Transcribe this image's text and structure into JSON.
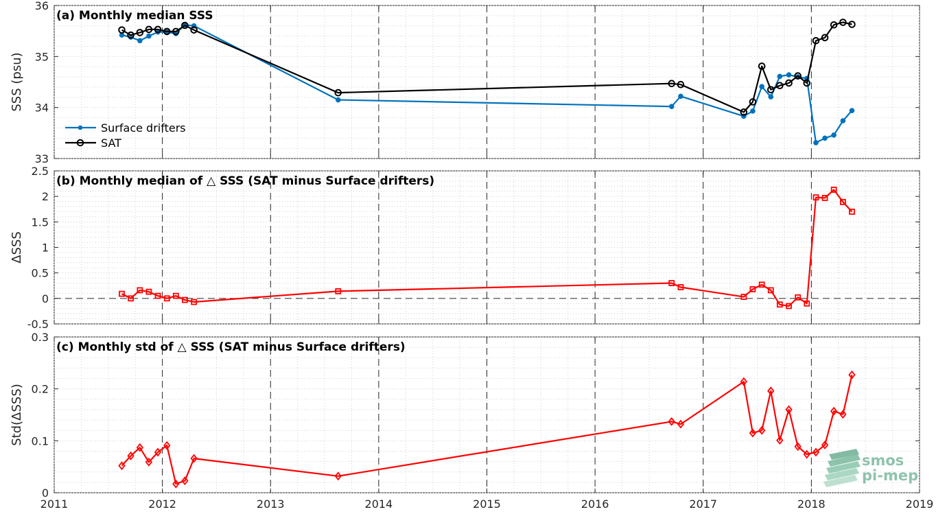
{
  "chart_data": [
    {
      "type": "line",
      "title": "(a) Monthly median SSS",
      "ylabel": "SSS (psu)",
      "xlim": [
        2011,
        2019
      ],
      "ylim": [
        33,
        36
      ],
      "yticks": [
        33,
        34,
        35,
        36
      ],
      "xticks": [
        2011,
        2012,
        2013,
        2014,
        2015,
        2016,
        2017,
        2018,
        2019
      ],
      "grid": true,
      "legend": {
        "placement": "lower-left",
        "entries": [
          "Surface drifters",
          "SAT"
        ]
      },
      "series": [
        {
          "name": "Surface drifters",
          "color": "#0072BD",
          "marker": "dot",
          "x": [
            2011.625,
            2011.708,
            2011.792,
            2011.875,
            2011.958,
            2012.042,
            2012.125,
            2012.208,
            2012.292,
            2013.625,
            2016.708,
            2016.792,
            2017.375,
            2017.458,
            2017.542,
            2017.625,
            2017.708,
            2017.792,
            2017.875,
            2017.958,
            2018.042,
            2018.125,
            2018.208,
            2018.292,
            2018.375
          ],
          "y": [
            35.42,
            35.38,
            35.31,
            35.4,
            35.48,
            35.48,
            35.45,
            35.62,
            35.6,
            34.15,
            34.02,
            34.22,
            33.83,
            33.93,
            34.41,
            34.21,
            34.61,
            34.64,
            34.6,
            34.57,
            33.31,
            33.4,
            33.46,
            33.74,
            33.94
          ]
        },
        {
          "name": "SAT",
          "color": "#000000",
          "marker": "circle",
          "x": [
            2011.625,
            2011.708,
            2011.792,
            2011.875,
            2011.958,
            2012.042,
            2012.125,
            2012.208,
            2012.292,
            2013.625,
            2016.708,
            2016.792,
            2017.375,
            2017.458,
            2017.542,
            2017.625,
            2017.708,
            2017.792,
            2017.875,
            2017.958,
            2018.042,
            2018.125,
            2018.208,
            2018.292,
            2018.375
          ],
          "y": [
            35.52,
            35.42,
            35.47,
            35.53,
            35.53,
            35.49,
            35.49,
            35.61,
            35.52,
            34.29,
            34.47,
            34.45,
            33.91,
            34.11,
            34.81,
            34.35,
            34.43,
            34.48,
            34.62,
            34.48,
            35.31,
            35.37,
            35.62,
            35.67,
            35.63
          ]
        }
      ]
    },
    {
      "type": "line",
      "title": "(b) Monthly median of △ SSS (SAT minus Surface drifters)",
      "ylabel": "ΔSSS",
      "xlim": [
        2011,
        2019
      ],
      "ylim": [
        -0.5,
        2.5
      ],
      "yticks": [
        -0.5,
        0,
        0.5,
        1,
        1.5,
        2,
        2.5
      ],
      "ytick_labels": [
        "-0.5",
        "0",
        "0.5",
        "1",
        "1.5",
        "2",
        "2.5"
      ],
      "xticks": [
        2011,
        2012,
        2013,
        2014,
        2015,
        2016,
        2017,
        2018,
        2019
      ],
      "grid": true,
      "reference_line_y": 0,
      "series": [
        {
          "color": "#FF0000",
          "marker": "square",
          "x": [
            2011.625,
            2011.708,
            2011.792,
            2011.875,
            2011.958,
            2012.042,
            2012.125,
            2012.208,
            2012.292,
            2013.625,
            2016.708,
            2016.792,
            2017.375,
            2017.458,
            2017.542,
            2017.625,
            2017.708,
            2017.792,
            2017.875,
            2017.958,
            2018.042,
            2018.125,
            2018.208,
            2018.292,
            2018.375
          ],
          "y": [
            0.09,
            0.0,
            0.16,
            0.13,
            0.05,
            0.0,
            0.05,
            -0.03,
            -0.07,
            0.14,
            0.3,
            0.22,
            0.03,
            0.18,
            0.27,
            0.16,
            -0.12,
            -0.15,
            0.02,
            -0.1,
            1.98,
            1.97,
            2.13,
            1.89,
            1.7
          ]
        }
      ]
    },
    {
      "type": "line",
      "title": "(c) Monthly std of △ SSS (SAT minus Surface drifters)",
      "ylabel": "Std(ΔSSS)",
      "xlim": [
        2011,
        2019
      ],
      "ylim": [
        0,
        0.3
      ],
      "yticks": [
        0,
        0.1,
        0.2,
        0.3
      ],
      "ytick_labels": [
        "0",
        "0.1",
        "0.2",
        "0.3"
      ],
      "xticks": [
        2011,
        2012,
        2013,
        2014,
        2015,
        2016,
        2017,
        2018,
        2019
      ],
      "xtick_labels": [
        "2011",
        "2012",
        "2013",
        "2014",
        "2015",
        "2016",
        "2017",
        "2018",
        "2019"
      ],
      "grid": true,
      "series": [
        {
          "color": "#FF0000",
          "marker": "diamond",
          "x": [
            2011.625,
            2011.708,
            2011.792,
            2011.875,
            2011.958,
            2012.042,
            2012.125,
            2012.208,
            2012.292,
            2013.625,
            2016.708,
            2016.792,
            2017.375,
            2017.458,
            2017.542,
            2017.625,
            2017.708,
            2017.792,
            2017.875,
            2017.958,
            2018.042,
            2018.125,
            2018.208,
            2018.292,
            2018.375
          ],
          "y": [
            0.052,
            0.071,
            0.087,
            0.059,
            0.078,
            0.091,
            0.017,
            0.023,
            0.066,
            0.032,
            0.137,
            0.132,
            0.214,
            0.115,
            0.12,
            0.196,
            0.101,
            0.16,
            0.089,
            0.074,
            0.078,
            0.092,
            0.157,
            0.151,
            0.227
          ]
        }
      ]
    }
  ],
  "watermark": {
    "line1": "smos",
    "line2": "pi-mep",
    "color": "#7ab9a0"
  }
}
